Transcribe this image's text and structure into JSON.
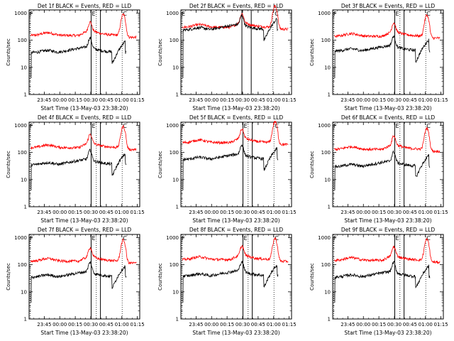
{
  "chart_data": [
    {
      "type": "line",
      "title": "Det 1f BLACK = Events, RED = LLD",
      "xlabel": "Start Time (13-May-03 23:38:20)",
      "ylabel": "Counts/sec",
      "x_ticks": [
        "23:45",
        "00:00",
        "00:15",
        "00:30",
        "00:45",
        "01:00",
        "01:15"
      ],
      "y_ticks": [
        "1",
        "10",
        "100",
        "1000"
      ],
      "xlim_minutes": [
        -8,
        99
      ],
      "ylim": [
        1,
        1300
      ],
      "log_y": true,
      "solid_markers_min": [
        52,
        61
      ],
      "dotted_markers_min": [
        -7,
        57,
        82
      ],
      "flag_labels": [
        "F",
        "E",
        "C"
      ],
      "series": [
        {
          "color": "#ff0000",
          "values": []
        },
        {
          "color": "#000000",
          "values": []
        }
      ]
    },
    {
      "type": "line",
      "title": "Det 2f BLACK = Events, RED = LLD",
      "xlabel": "Start Time (13-May-03 23:38:20)",
      "ylabel": "Counts/sec",
      "x_ticks": [
        "23:45",
        "00:00",
        "00:15",
        "00:30",
        "00:45",
        "01:00",
        "01:15"
      ],
      "y_ticks": [
        "1",
        "10",
        "100",
        "1000"
      ],
      "xlim_minutes": [
        -8,
        99
      ],
      "ylim": [
        1,
        1300
      ],
      "log_y": true,
      "solid_markers_min": [
        51,
        60
      ],
      "dotted_markers_min": [
        -7,
        81
      ],
      "flag_labels": [
        "E",
        "C"
      ],
      "series": [
        {
          "color": "#ff0000",
          "values": []
        },
        {
          "color": "#000000",
          "values": []
        }
      ]
    },
    {
      "type": "line",
      "title": "Det 3f BLACK = Events, RED = LLD",
      "xlabel": "Start Time (13-May-03 23:38:20)",
      "ylabel": "Counts/sec",
      "x_ticks": [
        "23:45",
        "00:00",
        "00:15",
        "00:30",
        "00:45",
        "01:00",
        "01:15"
      ],
      "y_ticks": [
        "1",
        "10",
        "100",
        "1000"
      ],
      "xlim_minutes": [
        -8,
        99
      ],
      "ylim": [
        1,
        1300
      ],
      "log_y": true,
      "solid_markers_min": [
        52,
        61
      ],
      "dotted_markers_min": [
        -7,
        57,
        82
      ],
      "flag_labels": [
        "F",
        "E",
        "C"
      ],
      "series": [
        {
          "color": "#ff0000",
          "values": []
        },
        {
          "color": "#000000",
          "values": []
        }
      ]
    },
    {
      "type": "line",
      "title": "Det 4f BLACK = Events, RED = LLD",
      "xlabel": "Start Time (13-May-03 23:38:20)",
      "ylabel": "Counts/sec",
      "x_ticks": [
        "23:45",
        "00:00",
        "00:15",
        "00:30",
        "00:45",
        "01:00",
        "01:15"
      ],
      "y_ticks": [
        "1",
        "10",
        "100",
        "1000"
      ],
      "xlim_minutes": [
        -8,
        99
      ],
      "ylim": [
        1,
        1300
      ],
      "log_y": true,
      "solid_markers_min": [
        52,
        61
      ],
      "dotted_markers_min": [
        -7,
        57,
        82
      ],
      "flag_labels": [
        "F",
        "E",
        "C"
      ],
      "series": [
        {
          "color": "#ff0000",
          "values": []
        },
        {
          "color": "#000000",
          "values": []
        }
      ]
    },
    {
      "type": "line",
      "title": "Det 5f BLACK = Events, RED = LLD",
      "xlabel": "Start Time (13-May-03 23:38:20)",
      "ylabel": "Counts/sec",
      "x_ticks": [
        "23:45",
        "00:00",
        "00:15",
        "00:30",
        "00:45",
        "01:00",
        "01:15"
      ],
      "y_ticks": [
        "1",
        "10",
        "100",
        "1000"
      ],
      "xlim_minutes": [
        -8,
        99
      ],
      "ylim": [
        1,
        1300
      ],
      "log_y": true,
      "solid_markers_min": [
        52,
        61
      ],
      "dotted_markers_min": [
        -7,
        57,
        82
      ],
      "flag_labels": [
        "F",
        "E",
        "C"
      ],
      "series": [
        {
          "color": "#ff0000",
          "values": []
        },
        {
          "color": "#000000",
          "values": []
        }
      ]
    },
    {
      "type": "line",
      "title": "Det 6f BLACK = Events, RED = LLD",
      "xlabel": "Start Time (13-May-03 23:38:20)",
      "ylabel": "Counts/sec",
      "x_ticks": [
        "23:45",
        "00:00",
        "00:15",
        "00:30",
        "00:45",
        "01:00",
        "01:15"
      ],
      "y_ticks": [
        "1",
        "10",
        "100",
        "1000"
      ],
      "xlim_minutes": [
        -8,
        99
      ],
      "ylim": [
        1,
        1300
      ],
      "log_y": true,
      "solid_markers_min": [
        52,
        61
      ],
      "dotted_markers_min": [
        -7,
        57,
        82
      ],
      "flag_labels": [
        "F",
        "E",
        "C"
      ],
      "series": [
        {
          "color": "#ff0000",
          "values": []
        },
        {
          "color": "#000000",
          "values": []
        }
      ]
    },
    {
      "type": "line",
      "title": "Det 7f BLACK = Events, RED = LLD",
      "xlabel": "Start Time (13-May-03 23:38:20)",
      "ylabel": "Counts/sec",
      "x_ticks": [
        "23:45",
        "00:00",
        "00:15",
        "00:30",
        "00:45",
        "01:00",
        "01:15"
      ],
      "y_ticks": [
        "1",
        "10",
        "100",
        "1000"
      ],
      "xlim_minutes": [
        -8,
        99
      ],
      "ylim": [
        1,
        1300
      ],
      "log_y": true,
      "solid_markers_min": [
        52,
        61
      ],
      "dotted_markers_min": [
        -7,
        57,
        82
      ],
      "flag_labels": [
        "F",
        "E",
        "C"
      ],
      "series": [
        {
          "color": "#ff0000",
          "values": []
        },
        {
          "color": "#000000",
          "values": []
        }
      ]
    },
    {
      "type": "line",
      "title": "Det 8f BLACK = Events, RED = LLD",
      "xlabel": "Start Time (13-May-03 23:38:20)",
      "ylabel": "Counts/sec",
      "x_ticks": [
        "23:45",
        "00:00",
        "00:15",
        "00:30",
        "00:45",
        "01:00",
        "01:15"
      ],
      "y_ticks": [
        "1",
        "10",
        "100",
        "1000"
      ],
      "xlim_minutes": [
        -8,
        99
      ],
      "ylim": [
        1,
        1300
      ],
      "log_y": true,
      "solid_markers_min": [
        52,
        61
      ],
      "dotted_markers_min": [
        -7,
        57,
        82
      ],
      "flag_labels": [
        "F",
        "E",
        "C"
      ],
      "series": [
        {
          "color": "#ff0000",
          "values": []
        },
        {
          "color": "#000000",
          "values": []
        }
      ]
    },
    {
      "type": "line",
      "title": "Det 9f BLACK = Events, RED = LLD",
      "xlabel": "Start Time (13-May-03 23:38:20)",
      "ylabel": "Counts/sec",
      "x_ticks": [
        "23:45",
        "00:00",
        "00:15",
        "00:30",
        "00:45",
        "01:00",
        "01:15"
      ],
      "y_ticks": [
        "1",
        "10",
        "100",
        "1000"
      ],
      "xlim_minutes": [
        -8,
        99
      ],
      "ylim": [
        1,
        1300
      ],
      "log_y": true,
      "solid_markers_min": [
        52,
        61
      ],
      "dotted_markers_min": [
        -7,
        57,
        82
      ],
      "flag_labels": [
        "F",
        "E",
        "C"
      ],
      "series": [
        {
          "color": "#ff0000",
          "values": []
        },
        {
          "color": "#000000",
          "values": []
        }
      ]
    }
  ]
}
